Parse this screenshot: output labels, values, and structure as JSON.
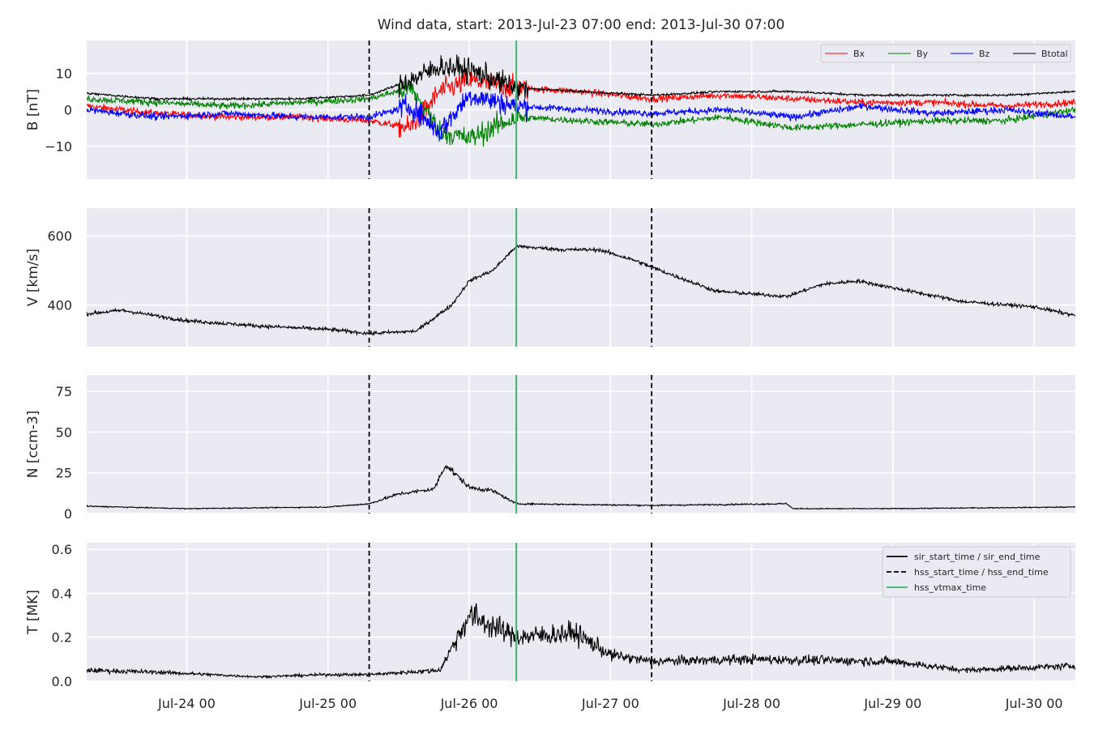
{
  "chart_data": {
    "type": "line",
    "title": "Wind data, start: 2013-Jul-23 07:00  end: 2013-Jul-30 07:00",
    "x_start": "2013-07-23T07:00",
    "x_end": "2013-07-30T07:00",
    "x_ticks": [
      "Jul-24 00",
      "Jul-25 00",
      "Jul-26 00",
      "Jul-27 00",
      "Jul-28 00",
      "Jul-29 00",
      "Jul-30 00"
    ],
    "grid": true,
    "event_lines": [
      {
        "name": "hss_start_time / hss_end_time",
        "style": "dashed",
        "color": "#000000",
        "times": [
          "2013-07-25T07:00",
          "2013-07-27T07:00"
        ]
      },
      {
        "name": "hss_vtmax_time",
        "style": "solid",
        "color": "#3cb371",
        "times": [
          "2013-07-26T08:00"
        ]
      }
    ],
    "legend_events": {
      "placement": "top-right",
      "entries": [
        {
          "label": "sir_start_time / sir_end_time",
          "style": "solid",
          "color": "#000000"
        },
        {
          "label": "hss_start_time / hss_end_time",
          "style": "dashed",
          "color": "#000000"
        },
        {
          "label": "hss_vtmax_time",
          "style": "solid",
          "color": "#3cb371"
        }
      ]
    },
    "panels": [
      {
        "id": "B",
        "ylabel": "B [nT]",
        "ylim": [
          -19,
          19
        ],
        "yticks": [
          -10,
          0,
          10
        ],
        "ytick_labels": [
          "−10",
          "0",
          "10"
        ],
        "legend": {
          "placement": "top-right",
          "ncol": 4
        },
        "series": [
          {
            "name": "Bx",
            "color": "#ff0000",
            "times": [
              "2013-07-23T07:00",
              "2013-07-23T19:00",
              "2013-07-24T07:00",
              "2013-07-24T19:00",
              "2013-07-25T07:00",
              "2013-07-25T14:00",
              "2013-07-25T19:00",
              "2013-07-26T00:00",
              "2013-07-26T08:00",
              "2013-07-26T19:00",
              "2013-07-27T07:00",
              "2013-07-27T19:00",
              "2013-07-28T07:00",
              "2013-07-28T19:00",
              "2013-07-29T07:00",
              "2013-07-29T19:00",
              "2013-07-30T07:00"
            ],
            "values": [
              1,
              -1,
              -2,
              -2,
              -3,
              -5,
              5,
              8,
              6,
              5,
              3,
              4,
              3,
              2,
              2,
              1,
              2
            ]
          },
          {
            "name": "By",
            "color": "#008000",
            "times": [
              "2013-07-23T07:00",
              "2013-07-23T19:00",
              "2013-07-24T07:00",
              "2013-07-24T19:00",
              "2013-07-25T07:00",
              "2013-07-25T14:00",
              "2013-07-25T19:00",
              "2013-07-26T00:00",
              "2013-07-26T08:00",
              "2013-07-26T19:00",
              "2013-07-27T07:00",
              "2013-07-27T19:00",
              "2013-07-28T07:00",
              "2013-07-28T19:00",
              "2013-07-29T07:00",
              "2013-07-29T19:00",
              "2013-07-30T07:00"
            ],
            "values": [
              3,
              2,
              1,
              2,
              3,
              6,
              -6,
              -8,
              -2,
              -3,
              -4,
              -2,
              -5,
              -4,
              -3,
              -3,
              0
            ]
          },
          {
            "name": "Bz",
            "color": "#0000ff",
            "times": [
              "2013-07-23T07:00",
              "2013-07-23T19:00",
              "2013-07-24T07:00",
              "2013-07-24T19:00",
              "2013-07-25T07:00",
              "2013-07-25T14:00",
              "2013-07-25T19:00",
              "2013-07-26T00:00",
              "2013-07-26T08:00",
              "2013-07-26T19:00",
              "2013-07-27T07:00",
              "2013-07-27T19:00",
              "2013-07-28T07:00",
              "2013-07-28T19:00",
              "2013-07-29T07:00",
              "2013-07-29T19:00",
              "2013-07-30T07:00"
            ],
            "values": [
              0,
              -2,
              -1,
              -2,
              -2,
              1,
              -6,
              4,
              1,
              0,
              -1,
              0,
              -2,
              1,
              -1,
              0,
              -2
            ]
          },
          {
            "name": "Btotal",
            "color": "#000000",
            "times": [
              "2013-07-23T07:00",
              "2013-07-23T19:00",
              "2013-07-24T07:00",
              "2013-07-24T19:00",
              "2013-07-25T07:00",
              "2013-07-25T14:00",
              "2013-07-25T19:00",
              "2013-07-26T00:00",
              "2013-07-26T08:00",
              "2013-07-26T19:00",
              "2013-07-27T07:00",
              "2013-07-27T19:00",
              "2013-07-28T07:00",
              "2013-07-28T19:00",
              "2013-07-29T07:00",
              "2013-07-29T19:00",
              "2013-07-30T07:00"
            ],
            "values": [
              4.5,
              3,
              3,
              3,
              4,
              8,
              12,
              11,
              6,
              5,
              4,
              5,
              5,
              4,
              4,
              4,
              5
            ]
          }
        ]
      },
      {
        "id": "V",
        "ylabel": "V [km/s]",
        "ylim": [
          280,
          680
        ],
        "yticks": [
          400,
          600
        ],
        "ytick_labels": [
          "400",
          "600"
        ],
        "series": [
          {
            "name": "V",
            "color": "#000000",
            "times": [
              "2013-07-23T07:00",
              "2013-07-23T13:00",
              "2013-07-24T00:00",
              "2013-07-24T12:00",
              "2013-07-25T00:00",
              "2013-07-25T07:00",
              "2013-07-25T15:00",
              "2013-07-25T21:00",
              "2013-07-26T00:00",
              "2013-07-26T04:00",
              "2013-07-26T08:00",
              "2013-07-26T16:00",
              "2013-07-26T22:00",
              "2013-07-27T04:00",
              "2013-07-27T10:00",
              "2013-07-27T18:00",
              "2013-07-28T06:00",
              "2013-07-28T12:00",
              "2013-07-28T18:00",
              "2013-07-29T00:00",
              "2013-07-29T12:00",
              "2013-07-30T00:00",
              "2013-07-30T07:00"
            ],
            "values": [
              375,
              385,
              355,
              340,
              330,
              318,
              325,
              400,
              470,
              500,
              570,
              560,
              560,
              530,
              490,
              440,
              425,
              460,
              470,
              450,
              410,
              395,
              370
            ]
          }
        ]
      },
      {
        "id": "N",
        "ylabel": "N [ccm-3]",
        "ylim": [
          0,
          85
        ],
        "yticks": [
          0,
          25,
          50,
          75
        ],
        "ytick_labels": [
          "0",
          "25",
          "50",
          "75"
        ],
        "series": [
          {
            "name": "N",
            "color": "#000000",
            "times": [
              "2013-07-23T07:00",
              "2013-07-24T00:00",
              "2013-07-25T00:00",
              "2013-07-25T07:00",
              "2013-07-25T12:00",
              "2013-07-25T18:00",
              "2013-07-25T20:00",
              "2013-07-26T00:00",
              "2013-07-26T04:00",
              "2013-07-26T08:00",
              "2013-07-27T07:00",
              "2013-07-28T06:00",
              "2013-07-28T07:00",
              "2013-07-29T00:00",
              "2013-07-30T07:00"
            ],
            "values": [
              4.5,
              3,
              4,
              6,
              12,
              15,
              30,
              16,
              14,
              6,
              5,
              6,
              3,
              3,
              4
            ]
          }
        ]
      },
      {
        "id": "T",
        "ylabel": "T [MK]",
        "ylim": [
          0,
          0.63
        ],
        "yticks": [
          0.0,
          0.2,
          0.4,
          0.6
        ],
        "ytick_labels": [
          "0.0",
          "0.2",
          "0.4",
          "0.6"
        ],
        "series": [
          {
            "name": "T",
            "color": "#000000",
            "times": [
              "2013-07-23T07:00",
              "2013-07-23T20:00",
              "2013-07-24T12:00",
              "2013-07-25T00:00",
              "2013-07-25T07:00",
              "2013-07-25T19:00",
              "2013-07-25T22:00",
              "2013-07-26T00:00",
              "2013-07-26T08:00",
              "2013-07-26T18:00",
              "2013-07-27T00:00",
              "2013-07-27T07:00",
              "2013-07-28T00:00",
              "2013-07-29T00:00",
              "2013-07-29T12:00",
              "2013-07-30T07:00"
            ],
            "values": [
              0.05,
              0.04,
              0.02,
              0.03,
              0.03,
              0.05,
              0.2,
              0.3,
              0.2,
              0.22,
              0.12,
              0.09,
              0.1,
              0.09,
              0.05,
              0.07
            ]
          }
        ]
      }
    ]
  }
}
